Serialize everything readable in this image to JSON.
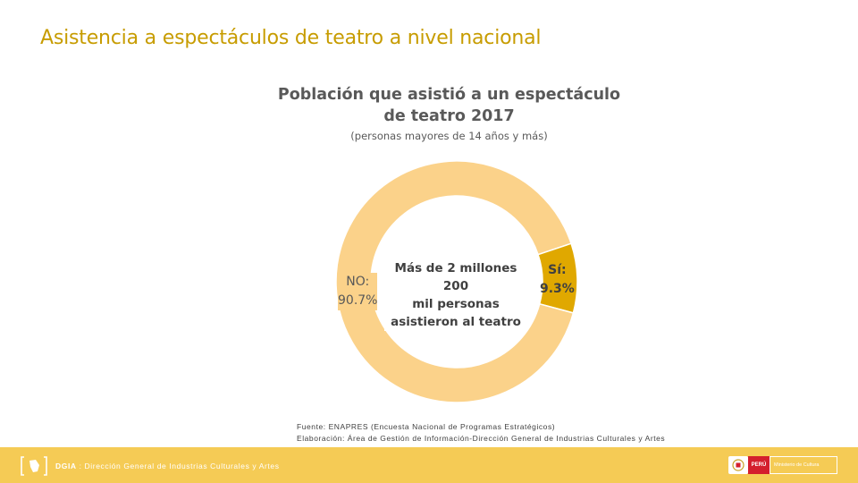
{
  "page": {
    "title": "Asistencia a espectáculos de teatro a nivel nacional"
  },
  "chart_data": {
    "type": "pie",
    "variant": "donut",
    "title": "Población que asistió a un espectáculo de teatro 2017",
    "subtitle": "(personas mayores de 14 años y más)",
    "center_text": [
      "Más de 2 millones 200",
      "mil personas",
      "asistieron al teatro"
    ],
    "slices": [
      {
        "name": "Sí",
        "value": 9.3,
        "label_name": "Sí:",
        "label_value": "9.3%",
        "color": "#e0a800"
      },
      {
        "name": "NO",
        "value": 90.7,
        "label_name": "NO:",
        "label_value": "90.7%",
        "color": "#fbd28a"
      }
    ]
  },
  "source": {
    "line1": "Fuente: ENAPRES (Encuesta Nacional de Programas Estratégicos)",
    "line2": "Elaboración: Área de Gestión de Información-Dirección General de Industrias Culturales y Artes"
  },
  "footer": {
    "org_abbr": "DGIA",
    "org_name": " : Dirección General de Industrias Culturales y Artes",
    "peru_label": "PERÚ",
    "ministry_label": "Ministerio de Cultura",
    "colors": {
      "bar": "#f5cb55"
    }
  },
  "colors": {
    "accent": "#c79c00"
  }
}
